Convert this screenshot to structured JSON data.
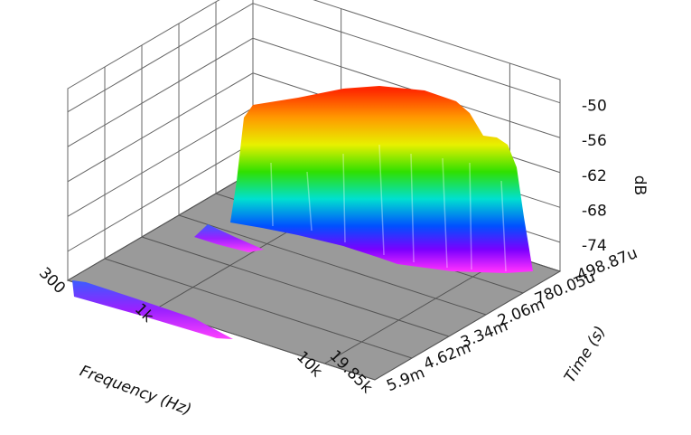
{
  "chart_data": {
    "type": "surface3d",
    "x_label": "Frequency (Hz)",
    "y_label": "Time (s)",
    "z_label": "dB",
    "xscale": "log",
    "xlim": [
      300,
      19850
    ],
    "xticks": [
      300,
      {
        "value": 1000,
        "label": "1k"
      },
      {
        "value": 10000,
        "label": "10k"
      },
      {
        "value": 19850,
        "label": "19.85k"
      }
    ],
    "ylim": [
      -0.00049887,
      0.0059
    ],
    "yticks": [
      {
        "value": -0.00049887,
        "label": "-498.87u"
      },
      {
        "value": 0.00078005,
        "label": "780.05u"
      },
      {
        "value": 0.00206,
        "label": "2.06m"
      },
      {
        "value": 0.00334,
        "label": "3.34m"
      },
      {
        "value": 0.00462,
        "label": "4.62m"
      },
      {
        "value": 0.0059,
        "label": "5.9m"
      }
    ],
    "zlim": [
      -79,
      -46
    ],
    "zticks": [
      -50,
      -56,
      -62,
      -68,
      -74
    ],
    "grid": true
  }
}
